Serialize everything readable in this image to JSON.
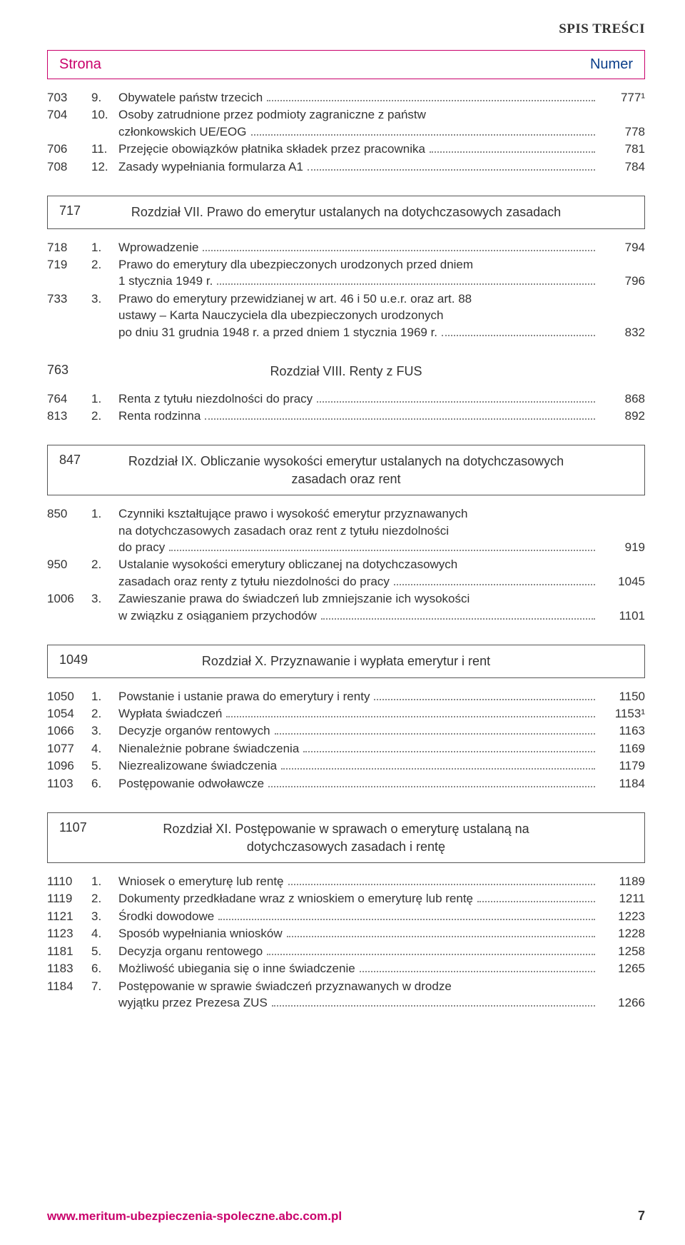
{
  "running_head": "SPIS TREŚCI",
  "header": {
    "left": "Strona",
    "right": "Numer"
  },
  "colors": {
    "accent": "#c9006b",
    "link": "#0a3e8a",
    "text": "#333333",
    "border": "#555555"
  },
  "font": {
    "body_size_pt": 13,
    "heading_size_pt": 15
  },
  "sections": [
    {
      "type": "rows",
      "rows": [
        {
          "strona": "703",
          "num": "9.",
          "title": "Obywatele państw trzecich",
          "numer": "777¹"
        },
        {
          "strona": "704",
          "num": "10.",
          "title_lines": [
            "Osoby zatrudnione przez podmioty zagraniczne z państw",
            "członkowskich UE/EOG"
          ],
          "numer": "778"
        },
        {
          "strona": "706",
          "num": "11.",
          "title": "Przejęcie obowiązków płatnika składek przez pracownika",
          "numer": "781"
        },
        {
          "strona": "708",
          "num": "12.",
          "title": "Zasady wypełniania formularza A1",
          "numer": "784"
        }
      ]
    },
    {
      "type": "chapter_boxed",
      "strona": "717",
      "title": "Rozdział VII. Prawo do emerytur ustalanych na dotychczasowych zasadach"
    },
    {
      "type": "rows",
      "rows": [
        {
          "strona": "718",
          "num": "1.",
          "title": "Wprowadzenie",
          "numer": "794"
        },
        {
          "strona": "719",
          "num": "2.",
          "title_lines": [
            "Prawo do emerytury dla ubezpieczonych urodzonych przed dniem",
            "1 stycznia 1949 r."
          ],
          "numer": "796"
        },
        {
          "strona": "733",
          "num": "3.",
          "title_lines": [
            "Prawo do emerytury przewidzianej w art. 46 i 50 u.e.r. oraz art. 88",
            "ustawy – Karta Nauczyciela dla ubezpieczonych urodzonych",
            "po dniu 31 grudnia 1948 r. a przed dniem 1 stycznia 1969 r."
          ],
          "numer": "832"
        }
      ]
    },
    {
      "type": "chapter_plain",
      "strona": "763",
      "title": "Rozdział VIII. Renty z FUS"
    },
    {
      "type": "rows",
      "rows": [
        {
          "strona": "764",
          "num": "1.",
          "title": "Renta z tytułu niezdolności do pracy",
          "numer": "868"
        },
        {
          "strona": "813",
          "num": "2.",
          "title": "Renta rodzinna",
          "numer": "892"
        }
      ]
    },
    {
      "type": "chapter_boxed",
      "strona": "847",
      "title": "Rozdział IX. Obliczanie wysokości emerytur ustalanych na dotychczasowych zasadach oraz rent"
    },
    {
      "type": "rows",
      "rows": [
        {
          "strona": "850",
          "num": "1.",
          "title_lines": [
            "Czynniki kształtujące prawo i wysokość emerytur przyznawanych",
            "na dotychczasowych zasadach oraz rent z tytułu niezdolności",
            "do pracy"
          ],
          "numer": "919"
        },
        {
          "strona": "950",
          "num": "2.",
          "title_lines": [
            "Ustalanie wysokości emerytury obliczanej na dotychczasowych",
            "zasadach oraz renty z tytułu niezdolności do pracy"
          ],
          "numer": "1045"
        },
        {
          "strona": "1006",
          "num": "3.",
          "title_lines": [
            "Zawieszanie prawa do świadczeń lub zmniejszanie ich wysokości",
            "w związku z osiąganiem przychodów"
          ],
          "numer": "1101"
        }
      ]
    },
    {
      "type": "chapter_boxed",
      "strona": "1049",
      "title": "Rozdział X. Przyznawanie i wypłata emerytur i rent"
    },
    {
      "type": "rows",
      "rows": [
        {
          "strona": "1050",
          "num": "1.",
          "title": "Powstanie i ustanie prawa do emerytury i renty",
          "numer": "1150"
        },
        {
          "strona": "1054",
          "num": "2.",
          "title": "Wypłata świadczeń",
          "numer": "1153¹"
        },
        {
          "strona": "1066",
          "num": "3.",
          "title": "Decyzje organów rentowych",
          "numer": "1163"
        },
        {
          "strona": "1077",
          "num": "4.",
          "title": "Nienależnie pobrane świadczenia",
          "numer": "1169"
        },
        {
          "strona": "1096",
          "num": "5.",
          "title": "Niezrealizowane świadczenia",
          "numer": "1179"
        },
        {
          "strona": "1103",
          "num": "6.",
          "title": "Postępowanie odwoławcze",
          "numer": "1184"
        }
      ]
    },
    {
      "type": "chapter_boxed",
      "strona": "1107",
      "title": "Rozdział XI. Postępowanie w sprawach o emeryturę ustalaną na dotychczasowych zasadach i rentę"
    },
    {
      "type": "rows",
      "rows": [
        {
          "strona": "1110",
          "num": "1.",
          "title": "Wniosek o emeryturę lub rentę",
          "numer": "1189"
        },
        {
          "strona": "1119",
          "num": "2.",
          "title": "Dokumenty przedkładane wraz z wnioskiem o emeryturę lub rentę",
          "numer": "1211"
        },
        {
          "strona": "1121",
          "num": "3.",
          "title": "Środki dowodowe",
          "numer": "1223"
        },
        {
          "strona": "1123",
          "num": "4.",
          "title": "Sposób wypełniania wniosków",
          "numer": "1228"
        },
        {
          "strona": "1181",
          "num": "5.",
          "title": "Decyzja organu rentowego",
          "numer": "1258"
        },
        {
          "strona": "1183",
          "num": "6.",
          "title": "Możliwość ubiegania się o inne świadczenie",
          "numer": "1265"
        },
        {
          "strona": "1184",
          "num": "7.",
          "title_lines": [
            "Postępowanie w sprawie świadczeń przyznawanych w drodze",
            "wyjątku przez Prezesa ZUS"
          ],
          "numer": "1266"
        }
      ]
    }
  ],
  "footer": {
    "url": "www.meritum-ubezpieczenia-spoleczne.abc.com.pl",
    "page": "7"
  }
}
